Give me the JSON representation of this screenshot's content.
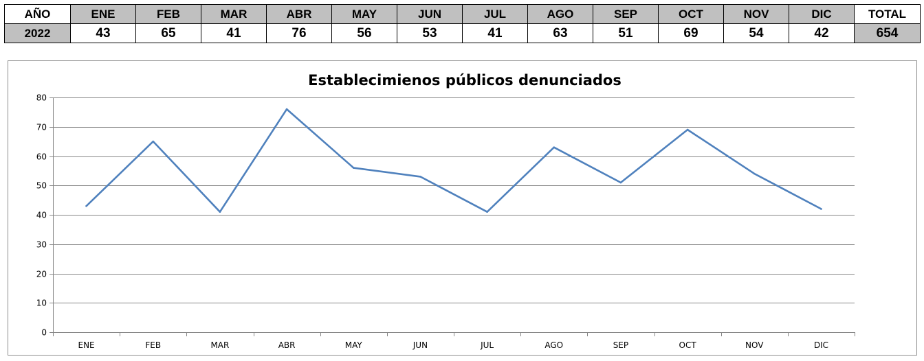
{
  "table": {
    "header": [
      "AÑO",
      "ENE",
      "FEB",
      "MAR",
      "ABR",
      "MAY",
      "JUN",
      "JUL",
      "AGO",
      "SEP",
      "OCT",
      "NOV",
      "DIC",
      "TOTAL"
    ],
    "row": [
      "2022",
      "43",
      "65",
      "41",
      "76",
      "56",
      "53",
      "41",
      "63",
      "51",
      "69",
      "54",
      "42",
      "654"
    ]
  },
  "chart_data": {
    "type": "line",
    "title": "Establecimienos públicos denunciados",
    "xlabel": "",
    "ylabel": "",
    "categories": [
      "ENE",
      "FEB",
      "MAR",
      "ABR",
      "MAY",
      "JUN",
      "JUL",
      "AGO",
      "SEP",
      "OCT",
      "NOV",
      "DIC"
    ],
    "series": [
      {
        "values": [
          43,
          65,
          41,
          76,
          56,
          53,
          41,
          63,
          51,
          69,
          54,
          42
        ],
        "color": "#4f81bd"
      }
    ],
    "ylim": [
      0,
      80
    ],
    "yticks": [
      "0",
      "10",
      "20",
      "30",
      "40",
      "50",
      "60",
      "70",
      "80"
    ],
    "grid": true,
    "legend": "none",
    "gridline_color": "#868686"
  }
}
